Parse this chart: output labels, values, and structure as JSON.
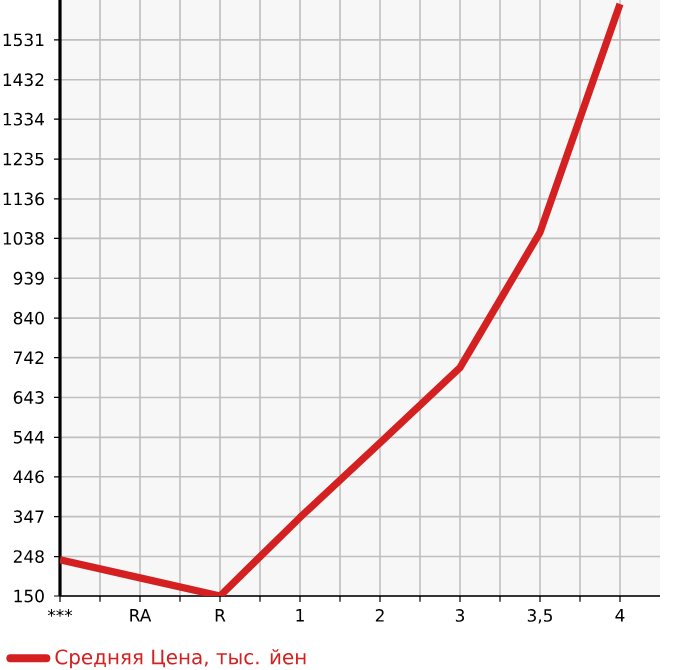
{
  "chart_data": {
    "type": "line",
    "categories": [
      "***",
      "RA",
      "R",
      "1",
      "2",
      "3",
      "3,5",
      "4"
    ],
    "series": [
      {
        "name": "Средняя Цена, тыс. йен",
        "color": "#d42020",
        "values": [
          240,
          195,
          150,
          345,
          530,
          717,
          1053,
          1620
        ]
      }
    ],
    "ylim": [
      150,
      1630
    ],
    "yticks": [
      150,
      248,
      347,
      446,
      544,
      643,
      742,
      840,
      939,
      1038,
      1136,
      1235,
      1334,
      1432,
      1531
    ],
    "grid": true,
    "legend": "bottom",
    "marker": "none",
    "line_style": "solid"
  }
}
